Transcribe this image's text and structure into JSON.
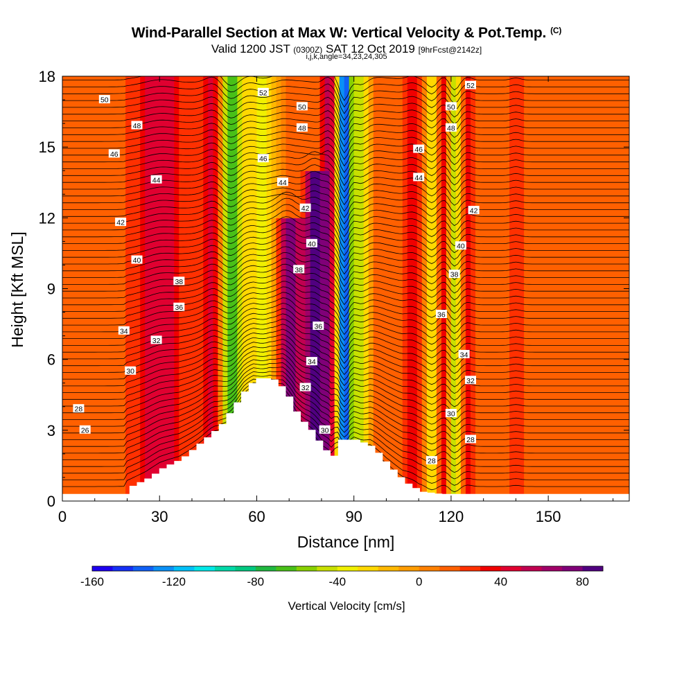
{
  "title": {
    "main": "Wind-Parallel Section at Max W: Vertical Velocity & Pot.Temp.",
    "copyright": "(C)",
    "sub_valid": "Valid 1200 JST",
    "sub_utc": "(0300Z)",
    "sub_date": "SAT 12 Oct 2019",
    "sub_fcst": "[9hrFcst@2142z]",
    "params": "i,j,k,angle=34,23,24,305"
  },
  "chart_data": {
    "type": "heatmap",
    "xlabel": "Distance [nm]",
    "ylabel": "Height [Kft MSL]",
    "xlim": [
      0,
      175
    ],
    "ylim": [
      0,
      18
    ],
    "x_ticks": [
      0,
      30,
      60,
      90,
      120,
      150
    ],
    "y_ticks": [
      0,
      3,
      6,
      9,
      12,
      15,
      18
    ],
    "colorbar": {
      "label": "Vertical Velocity [cm/s]",
      "range": [
        -160,
        90
      ],
      "tick_labels": [
        -160,
        -120,
        -80,
        -40,
        0,
        40,
        80
      ],
      "colors": [
        "#1d00f0",
        "#1530f5",
        "#1060f5",
        "#0a90f5",
        "#00c0f8",
        "#00e8e8",
        "#00d8a8",
        "#00c880",
        "#20b840",
        "#48c018",
        "#88d000",
        "#c8e000",
        "#f0f000",
        "#ffd800",
        "#ffb800",
        "#ff9c00",
        "#ff8000",
        "#ff6000",
        "#ff3000",
        "#f00000",
        "#e00030",
        "#c00050",
        "#a00068",
        "#800078",
        "#500080"
      ]
    },
    "terrain_kft": [
      [
        0,
        0.3
      ],
      [
        19,
        0.3
      ],
      [
        20,
        0.6
      ],
      [
        26,
        1.0
      ],
      [
        30,
        1.4
      ],
      [
        36,
        1.8
      ],
      [
        42,
        2.5
      ],
      [
        48,
        3.2
      ],
      [
        52,
        4.0
      ],
      [
        56,
        4.8
      ],
      [
        59,
        5.2
      ],
      [
        64,
        5.2
      ],
      [
        68,
        4.7
      ],
      [
        72,
        3.6
      ],
      [
        76,
        3.0
      ],
      [
        80,
        2.2
      ],
      [
        83,
        1.9
      ],
      [
        85,
        2.6
      ],
      [
        90,
        2.6
      ],
      [
        95,
        2.3
      ],
      [
        100,
        1.5
      ],
      [
        105,
        0.8
      ],
      [
        110,
        0.4
      ],
      [
        116,
        0.3
      ],
      [
        175,
        0.3
      ]
    ],
    "vertical_velocity_features_cm_s": [
      {
        "x": 30,
        "width": 7,
        "w": 50,
        "z_top": 18
      },
      {
        "x": 47,
        "width": 3.5,
        "w": 60,
        "z_top": 18
      },
      {
        "x": 52,
        "width": 4,
        "w": -75,
        "z_top": 18
      },
      {
        "x": 62,
        "width": 5,
        "w": -35,
        "z_top": 18
      },
      {
        "x": 70,
        "width": 4,
        "w": 80,
        "z_top": 12
      },
      {
        "x": 78,
        "width": 3,
        "w": 85,
        "z_top": 14
      },
      {
        "x": 82,
        "width": 2,
        "w": 60,
        "z_top": 18
      },
      {
        "x": 87,
        "width": 2,
        "w": -150,
        "z_top": 18
      },
      {
        "x": 92,
        "width": 3,
        "w": -45,
        "z_top": 18
      },
      {
        "x": 108,
        "width": 2.5,
        "w": 40,
        "z_top": 18
      },
      {
        "x": 114,
        "width": 2,
        "w": -35,
        "z_top": 18
      },
      {
        "x": 118,
        "width": 2,
        "w": 40,
        "z_top": 18
      },
      {
        "x": 121,
        "width": 2,
        "w": -55,
        "z_top": 18
      },
      {
        "x": 125,
        "width": 2,
        "w": 35,
        "z_top": 18
      },
      {
        "x": 140,
        "width": 2,
        "w": 30,
        "z_top": 18
      }
    ],
    "potential_temperature_labels": [
      {
        "text": "50",
        "x": 13,
        "z": 17.0
      },
      {
        "text": "48",
        "x": 23,
        "z": 15.9
      },
      {
        "text": "46",
        "x": 16,
        "z": 14.7
      },
      {
        "text": "44",
        "x": 29,
        "z": 13.6
      },
      {
        "text": "42",
        "x": 18,
        "z": 11.8
      },
      {
        "text": "40",
        "x": 23,
        "z": 10.2
      },
      {
        "text": "38",
        "x": 36,
        "z": 9.3
      },
      {
        "text": "36",
        "x": 36,
        "z": 8.2
      },
      {
        "text": "34",
        "x": 19,
        "z": 7.2
      },
      {
        "text": "32",
        "x": 29,
        "z": 6.8
      },
      {
        "text": "30",
        "x": 21,
        "z": 5.5
      },
      {
        "text": "28",
        "x": 5,
        "z": 3.9
      },
      {
        "text": "26",
        "x": 7,
        "z": 3.0
      },
      {
        "text": "52",
        "x": 62,
        "z": 17.3
      },
      {
        "text": "50",
        "x": 74,
        "z": 16.7
      },
      {
        "text": "48",
        "x": 74,
        "z": 15.8
      },
      {
        "text": "46",
        "x": 62,
        "z": 14.5
      },
      {
        "text": "44",
        "x": 68,
        "z": 13.5
      },
      {
        "text": "42",
        "x": 75,
        "z": 12.4
      },
      {
        "text": "40",
        "x": 77,
        "z": 10.9
      },
      {
        "text": "38",
        "x": 73,
        "z": 9.8
      },
      {
        "text": "36",
        "x": 79,
        "z": 7.4
      },
      {
        "text": "34",
        "x": 77,
        "z": 5.9
      },
      {
        "text": "32",
        "x": 75,
        "z": 4.8
      },
      {
        "text": "30",
        "x": 81,
        "z": 3.0
      },
      {
        "text": "52",
        "x": 126,
        "z": 17.6
      },
      {
        "text": "50",
        "x": 120,
        "z": 16.7
      },
      {
        "text": "48",
        "x": 120,
        "z": 15.8
      },
      {
        "text": "46",
        "x": 110,
        "z": 14.9
      },
      {
        "text": "44",
        "x": 110,
        "z": 13.7
      },
      {
        "text": "42",
        "x": 127,
        "z": 12.3
      },
      {
        "text": "40",
        "x": 123,
        "z": 10.8
      },
      {
        "text": "38",
        "x": 121,
        "z": 9.6
      },
      {
        "text": "36",
        "x": 117,
        "z": 7.9
      },
      {
        "text": "34",
        "x": 124,
        "z": 6.2
      },
      {
        "text": "32",
        "x": 126,
        "z": 5.1
      },
      {
        "text": "30",
        "x": 120,
        "z": 3.7
      },
      {
        "text": "28",
        "x": 126,
        "z": 2.6
      },
      {
        "text": "28",
        "x": 114,
        "z": 1.7
      }
    ]
  }
}
